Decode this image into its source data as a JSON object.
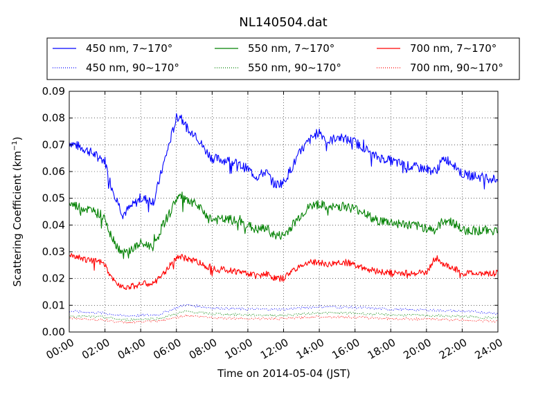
{
  "chart_data": {
    "type": "line",
    "title": "NL140504.dat",
    "xlabel": "Time on 2014-05-04 (JST)",
    "ylabel": "Scattering Coefficient (km",
    "ylabel_sup": "−1",
    "ylabel_suffix": ")",
    "xlim": [
      "00:00",
      "24:00"
    ],
    "ylim": [
      0.0,
      0.09
    ],
    "x_ticks": [
      "00:00",
      "02:00",
      "04:00",
      "06:00",
      "08:00",
      "10:00",
      "12:00",
      "14:00",
      "16:00",
      "18:00",
      "20:00",
      "22:00",
      "24:00"
    ],
    "y_ticks": [
      "0.00",
      "0.01",
      "0.02",
      "0.03",
      "0.04",
      "0.05",
      "0.06",
      "0.07",
      "0.08",
      "0.09"
    ],
    "grid": true,
    "legend_position": "top",
    "colors": {
      "blue": "#0000ff",
      "green": "#008000",
      "red": "#ff0000"
    },
    "series": [
      {
        "name": "450 nm, 7∼170°",
        "color": "#0000ff",
        "style": "solid",
        "x": [
          "00:00",
          "01:00",
          "01:45",
          "02:00",
          "02:20",
          "03:00",
          "03:30",
          "04:00",
          "04:45",
          "05:10",
          "05:40",
          "06:00",
          "06:15",
          "06:45",
          "07:00",
          "07:30",
          "08:00",
          "09:00",
          "10:00",
          "10:30",
          "11:00",
          "11:30",
          "12:00",
          "12:30",
          "13:00",
          "13:30",
          "14:00",
          "14:30",
          "15:00",
          "15:30",
          "16:00",
          "16:30",
          "17:00",
          "18:00",
          "19:00",
          "20:00",
          "20:30",
          "21:00",
          "21:30",
          "22:00",
          "23:00",
          "24:00"
        ],
        "values": [
          0.071,
          0.068,
          0.065,
          0.064,
          0.055,
          0.044,
          0.047,
          0.05,
          0.049,
          0.06,
          0.072,
          0.08,
          0.081,
          0.074,
          0.075,
          0.069,
          0.065,
          0.064,
          0.061,
          0.058,
          0.06,
          0.055,
          0.056,
          0.062,
          0.068,
          0.072,
          0.075,
          0.071,
          0.073,
          0.072,
          0.071,
          0.069,
          0.066,
          0.064,
          0.062,
          0.061,
          0.06,
          0.065,
          0.063,
          0.059,
          0.058,
          0.057
        ]
      },
      {
        "name": "450 nm, 90∼170°",
        "color": "#0000ff",
        "style": "dotted",
        "x": [
          "00:00",
          "02:00",
          "03:00",
          "04:00",
          "05:00",
          "06:00",
          "06:30",
          "08:00",
          "10:00",
          "12:00",
          "14:00",
          "16:00",
          "18:00",
          "20:00",
          "22:00",
          "24:00"
        ],
        "values": [
          0.0078,
          0.007,
          0.006,
          0.0062,
          0.0065,
          0.009,
          0.0102,
          0.009,
          0.0085,
          0.0085,
          0.0095,
          0.0092,
          0.0085,
          0.0082,
          0.0078,
          0.007
        ]
      },
      {
        "name": "550 nm, 7∼170°",
        "color": "#008000",
        "style": "solid",
        "x": [
          "00:00",
          "01:00",
          "01:45",
          "02:00",
          "02:20",
          "03:00",
          "03:30",
          "04:00",
          "04:45",
          "05:10",
          "05:40",
          "06:00",
          "06:15",
          "06:45",
          "07:00",
          "07:30",
          "08:00",
          "09:00",
          "10:00",
          "10:30",
          "11:00",
          "11:30",
          "12:00",
          "12:30",
          "13:00",
          "13:30",
          "14:00",
          "14:30",
          "15:00",
          "15:30",
          "16:00",
          "16:30",
          "17:00",
          "18:00",
          "19:00",
          "20:00",
          "20:30",
          "21:00",
          "21:30",
          "22:00",
          "23:00",
          "24:00"
        ],
        "values": [
          0.048,
          0.046,
          0.044,
          0.043,
          0.036,
          0.029,
          0.031,
          0.033,
          0.032,
          0.039,
          0.045,
          0.05,
          0.051,
          0.048,
          0.048,
          0.045,
          0.042,
          0.042,
          0.04,
          0.038,
          0.039,
          0.036,
          0.036,
          0.04,
          0.044,
          0.047,
          0.048,
          0.046,
          0.047,
          0.047,
          0.046,
          0.045,
          0.042,
          0.041,
          0.04,
          0.039,
          0.038,
          0.042,
          0.041,
          0.038,
          0.038,
          0.038
        ]
      },
      {
        "name": "550 nm, 90∼170°",
        "color": "#008000",
        "style": "dotted",
        "x": [
          "00:00",
          "02:00",
          "03:00",
          "04:00",
          "05:00",
          "06:00",
          "06:30",
          "08:00",
          "10:00",
          "12:00",
          "14:00",
          "16:00",
          "18:00",
          "20:00",
          "22:00",
          "24:00"
        ],
        "values": [
          0.006,
          0.0055,
          0.0045,
          0.0048,
          0.005,
          0.0068,
          0.0077,
          0.0068,
          0.0064,
          0.0062,
          0.0072,
          0.007,
          0.0064,
          0.0062,
          0.0058,
          0.0052
        ]
      },
      {
        "name": "700 nm, 7∼170°",
        "color": "#ff0000",
        "style": "solid",
        "x": [
          "00:00",
          "01:00",
          "01:45",
          "02:00",
          "02:20",
          "03:00",
          "03:30",
          "04:00",
          "04:45",
          "05:10",
          "05:40",
          "06:00",
          "06:15",
          "06:45",
          "07:00",
          "07:30",
          "08:00",
          "09:00",
          "10:00",
          "10:30",
          "11:00",
          "11:30",
          "12:00",
          "12:30",
          "13:00",
          "13:30",
          "14:00",
          "14:30",
          "15:00",
          "15:30",
          "16:00",
          "16:30",
          "17:00",
          "18:00",
          "19:00",
          "20:00",
          "20:30",
          "21:00",
          "21:30",
          "22:00",
          "23:00",
          "24:00"
        ],
        "values": [
          0.029,
          0.027,
          0.026,
          0.025,
          0.02,
          0.017,
          0.017,
          0.018,
          0.018,
          0.021,
          0.025,
          0.028,
          0.028,
          0.027,
          0.027,
          0.025,
          0.024,
          0.023,
          0.022,
          0.021,
          0.022,
          0.02,
          0.02,
          0.023,
          0.025,
          0.026,
          0.026,
          0.025,
          0.026,
          0.026,
          0.025,
          0.024,
          0.023,
          0.022,
          0.022,
          0.022,
          0.028,
          0.025,
          0.024,
          0.022,
          0.022,
          0.022
        ]
      },
      {
        "name": "700 nm, 90∼170°",
        "color": "#ff0000",
        "style": "dotted",
        "x": [
          "00:00",
          "02:00",
          "03:00",
          "04:00",
          "05:00",
          "06:00",
          "06:30",
          "08:00",
          "10:00",
          "12:00",
          "14:00",
          "16:00",
          "18:00",
          "20:00",
          "22:00",
          "24:00"
        ],
        "values": [
          0.0052,
          0.0045,
          0.0035,
          0.0038,
          0.004,
          0.0055,
          0.0062,
          0.0054,
          0.005,
          0.005,
          0.0058,
          0.0055,
          0.005,
          0.0048,
          0.0045,
          0.004
        ]
      }
    ]
  }
}
